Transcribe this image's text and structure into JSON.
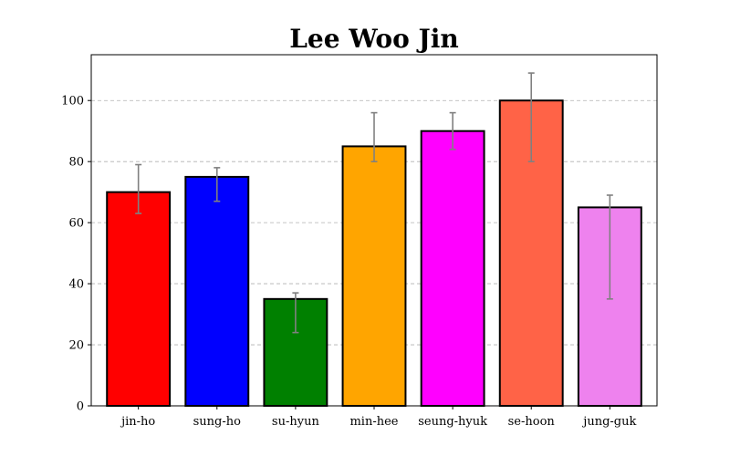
{
  "chart_data": {
    "type": "bar",
    "title": "Lee Woo Jin",
    "xlabel": "",
    "ylabel": "",
    "categories": [
      "jin-ho",
      "sung-ho",
      "su-hyun",
      "min-hee",
      "seung-hyuk",
      "se-hoon",
      "jung-guk"
    ],
    "values": [
      70,
      75,
      35,
      85,
      90,
      100,
      65
    ],
    "error_low": [
      63,
      67,
      24,
      80,
      84,
      80,
      35
    ],
    "error_high": [
      79,
      78,
      37,
      96,
      96,
      109,
      69
    ],
    "colors": [
      "#ff0000",
      "#0000ff",
      "#008000",
      "#ffa500",
      "#ff00ff",
      "#ff6347",
      "#ee82ee"
    ],
    "error_color": "#808080",
    "ylim": [
      0,
      115
    ],
    "yticks": [
      0,
      20,
      40,
      60,
      80,
      100
    ],
    "grid": "y-dashed",
    "legend": "none"
  }
}
